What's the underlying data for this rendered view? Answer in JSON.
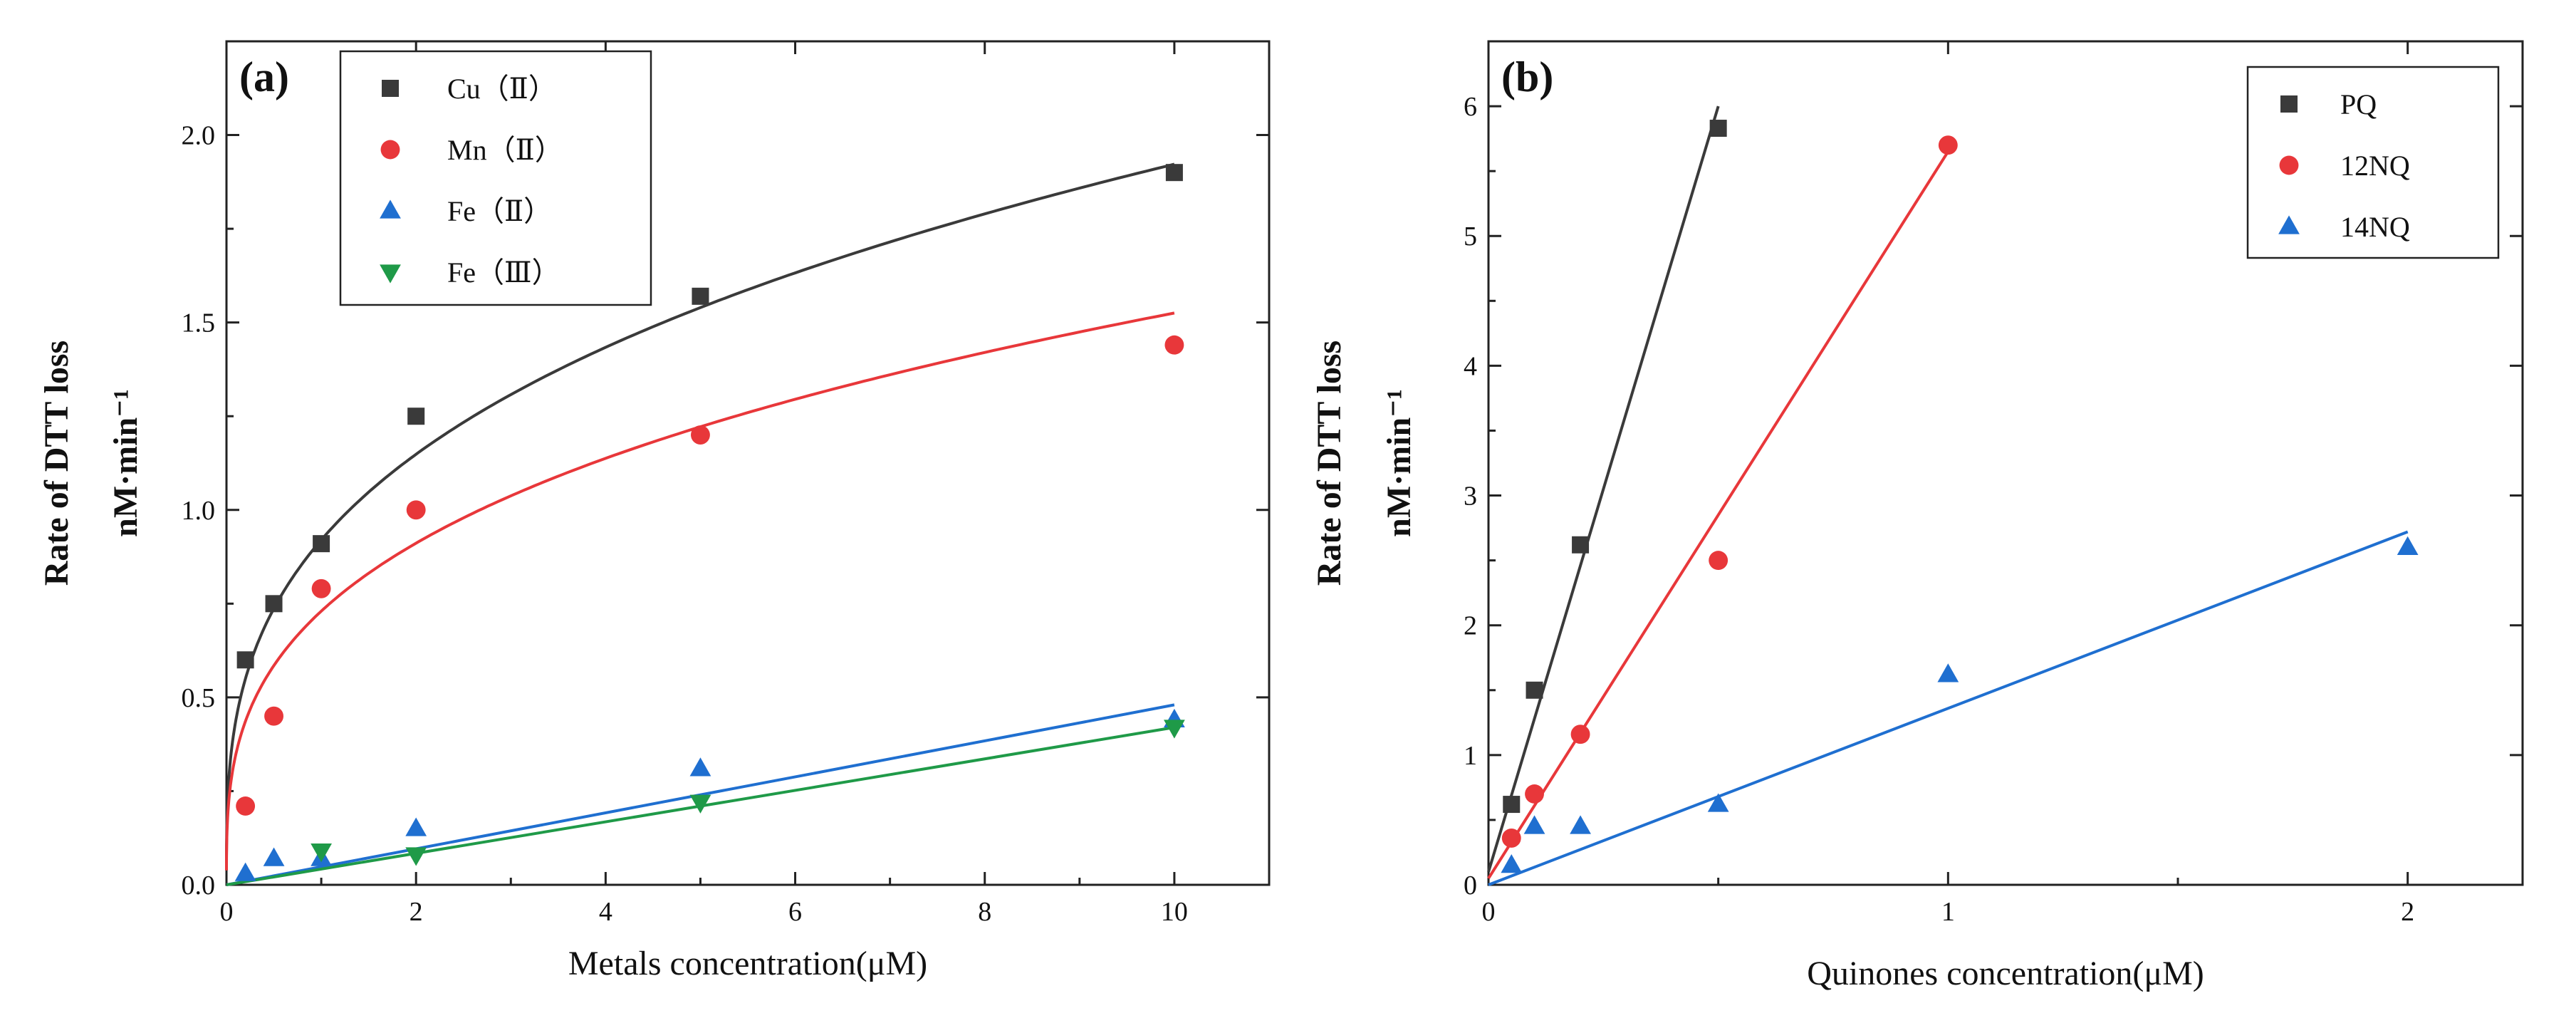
{
  "chart_data": [
    {
      "type": "scatter",
      "panel_label": "(a)",
      "xlabel": "Metals concentration(μM)",
      "ylabel": [
        "Rate of DTT loss",
        "nM·min⁻¹"
      ],
      "xlim": [
        0,
        11
      ],
      "ylim": [
        0,
        2.25
      ],
      "xticks": [
        0,
        2,
        4,
        6,
        8,
        10
      ],
      "yticks": [
        0.0,
        0.5,
        1.0,
        1.5,
        2.0
      ],
      "xtick_labels": [
        "0",
        "2",
        "4",
        "6",
        "8",
        "10"
      ],
      "ytick_labels": [
        "0.0",
        "0.5",
        "1.0",
        "1.5",
        "2.0"
      ],
      "grid": false,
      "legend_position": "top-left",
      "series": [
        {
          "name": "Cu（Ⅱ）",
          "marker": "square",
          "color": "#3a3a3a",
          "x": [
            0.2,
            0.5,
            1,
            2,
            5,
            10
          ],
          "y": [
            0.6,
            0.75,
            0.91,
            1.25,
            1.57,
            1.9
          ],
          "fit": {
            "kind": "power",
            "a": 0.92,
            "b": 0.32
          }
        },
        {
          "name": "Mn（Ⅱ）",
          "marker": "circle",
          "color": "#e8373a",
          "x": [
            0.2,
            0.5,
            1,
            2,
            5,
            10
          ],
          "y": [
            0.21,
            0.45,
            0.79,
            1.0,
            1.2,
            1.44
          ],
          "fit": {
            "kind": "power",
            "a": 0.73,
            "b": 0.32
          }
        },
        {
          "name": "Fe（Ⅱ）",
          "marker": "triangle-up",
          "color": "#1f6fd0",
          "x": [
            0.2,
            0.5,
            1,
            2,
            5,
            10
          ],
          "y": [
            0.03,
            0.07,
            0.07,
            0.15,
            0.31,
            0.44
          ],
          "fit": {
            "kind": "linear",
            "slope": 0.048,
            "intercept": 0
          }
        },
        {
          "name": "Fe（Ⅲ）",
          "marker": "triangle-down",
          "color": "#1f9a48",
          "x": [
            1,
            2,
            5,
            10
          ],
          "y": [
            0.09,
            0.08,
            0.22,
            0.42
          ],
          "fit": {
            "kind": "linear",
            "slope": 0.042,
            "intercept": 0
          }
        }
      ]
    },
    {
      "type": "scatter",
      "panel_label": "(b)",
      "xlabel": "Quinones concentration(μM)",
      "ylabel": [
        "Rate of DTT loss",
        "nM·min⁻¹"
      ],
      "xlim": [
        0,
        2.25
      ],
      "ylim": [
        0,
        6.5
      ],
      "xticks": [
        0,
        1,
        2
      ],
      "yticks": [
        0,
        1,
        2,
        3,
        4,
        5,
        6
      ],
      "xtick_labels": [
        "0",
        "1",
        "2"
      ],
      "ytick_labels": [
        "0",
        "1",
        "2",
        "3",
        "4",
        "5",
        "6"
      ],
      "grid": false,
      "legend_position": "top-right",
      "series": [
        {
          "name": "PQ",
          "marker": "square",
          "color": "#3a3a3a",
          "x": [
            0.05,
            0.1,
            0.2,
            0.5
          ],
          "y": [
            0.62,
            1.5,
            2.62,
            5.83
          ],
          "fit": {
            "kind": "linear",
            "slope": 11.8,
            "intercept": 0.1,
            "x_range": [
              0,
              0.5
            ]
          }
        },
        {
          "name": "12NQ",
          "marker": "circle",
          "color": "#e8373a",
          "x": [
            0.05,
            0.1,
            0.2,
            0.5,
            1
          ],
          "y": [
            0.36,
            0.7,
            1.16,
            2.5,
            5.7
          ],
          "fit": {
            "kind": "linear",
            "slope": 5.6,
            "intercept": 0.05,
            "x_range": [
              0,
              1
            ]
          }
        },
        {
          "name": "14NQ",
          "marker": "triangle-up",
          "color": "#1f6fd0",
          "x": [
            0.05,
            0.1,
            0.2,
            0.5,
            1,
            2
          ],
          "y": [
            0.15,
            0.45,
            0.45,
            0.62,
            1.62,
            2.6
          ],
          "fit": {
            "kind": "linear",
            "slope": 1.36,
            "intercept": 0,
            "x_range": [
              0,
              2
            ]
          }
        }
      ]
    }
  ]
}
